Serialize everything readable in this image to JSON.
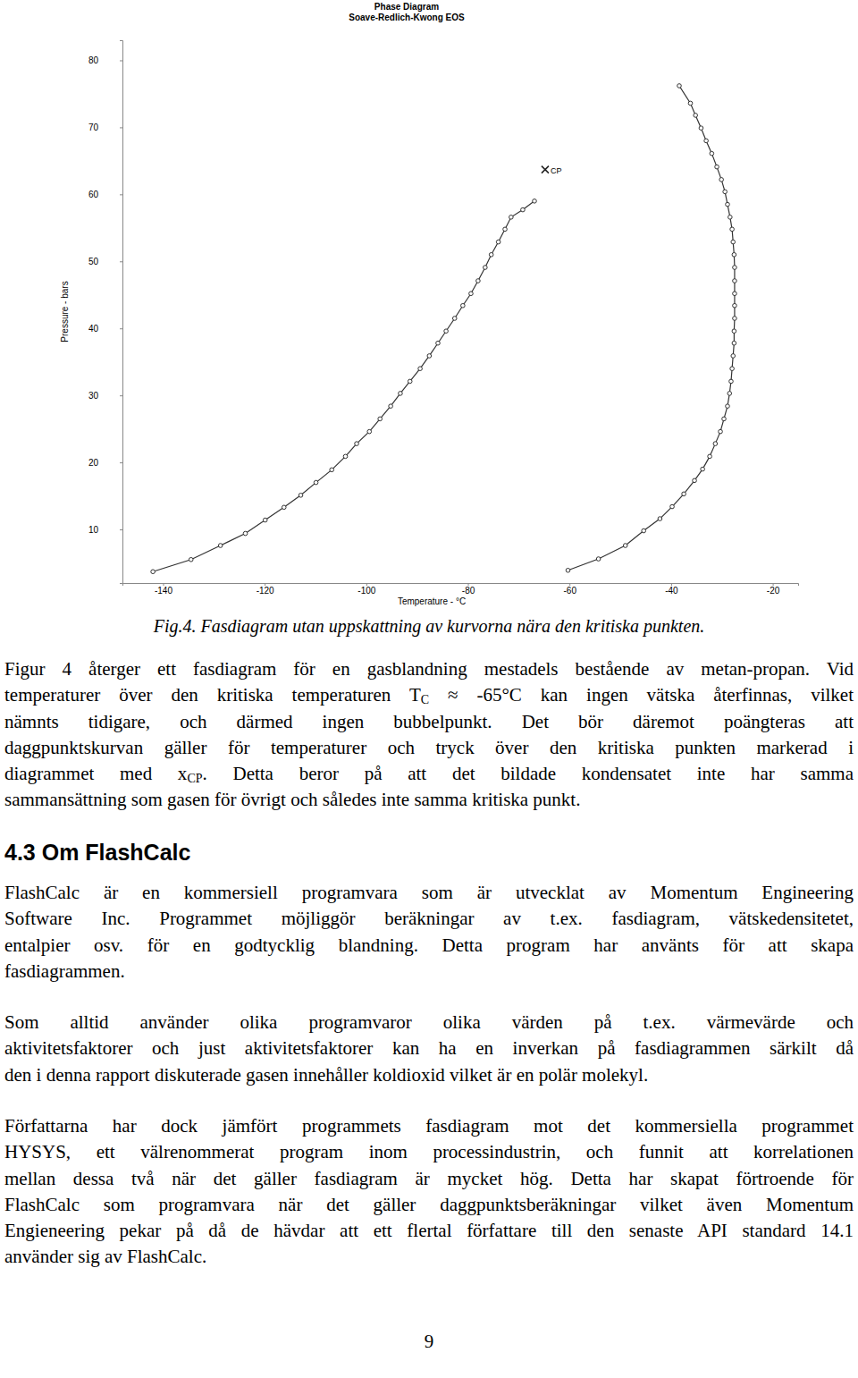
{
  "chart_data": {
    "type": "line",
    "title": "Phase Diagram",
    "subtitle": "Soave-Redlich-Kwong EOS",
    "x_label": "Temperature - °C",
    "y_label": "Pressure - bars",
    "xlim": [
      -148,
      -15
    ],
    "ylim": [
      2,
      83
    ],
    "xticks": [
      -140,
      -120,
      -100,
      -80,
      -60,
      -40,
      -20
    ],
    "yticks": [
      10,
      20,
      30,
      40,
      50,
      60,
      70,
      80
    ],
    "grid": false,
    "series": [
      {
        "color": "#333333",
        "marker": "circle",
        "line_style": "solid",
        "x": [
          -142.0,
          -134.5,
          -128.7,
          -123.8,
          -119.9,
          -116.2,
          -112.9,
          -109.9,
          -106.8,
          -104.1,
          -101.9,
          -99.4,
          -97.3,
          -95.2,
          -93.3,
          -91.4,
          -89.4,
          -87.6,
          -85.9,
          -84.3,
          -82.6,
          -81.0,
          -79.4,
          -78.0,
          -76.6,
          -75.4,
          -74.0,
          -72.7,
          -71.5,
          -69.2,
          -66.9
        ],
        "values": [
          3.7,
          5.5,
          7.6,
          9.4,
          11.4,
          13.3,
          15.1,
          17.0,
          18.9,
          20.9,
          22.8,
          24.6,
          26.5,
          28.4,
          30.3,
          32.1,
          34.0,
          35.9,
          37.8,
          39.6,
          41.5,
          43.4,
          45.2,
          47.1,
          49.1,
          51.0,
          52.9,
          54.8,
          56.6,
          57.7,
          59.0
        ]
      },
      {
        "color": "#333333",
        "marker": "circle",
        "line_style": "solid",
        "x": [
          -60.3,
          -54.3,
          -49.0,
          -45.4,
          -42.2,
          -39.8,
          -37.5,
          -35.4,
          -33.8,
          -32.4,
          -31.3,
          -30.3,
          -29.6,
          -28.9,
          -28.5,
          -28.2,
          -28.0,
          -27.8,
          -27.6,
          -27.6,
          -27.5,
          -27.5,
          -27.5,
          -27.5,
          -27.5,
          -27.6,
          -27.8,
          -28.0,
          -28.4,
          -28.9,
          -29.4,
          -30.1,
          -31.0,
          -32.0,
          -33.1,
          -34.1,
          -35.2,
          -36.2,
          -38.4
        ],
        "values": [
          3.9,
          5.6,
          7.6,
          9.8,
          11.6,
          13.4,
          15.3,
          17.3,
          19.0,
          20.9,
          22.8,
          24.6,
          26.5,
          28.4,
          30.3,
          32.1,
          34.0,
          35.9,
          37.8,
          39.6,
          41.5,
          43.4,
          45.2,
          47.1,
          49.1,
          51.0,
          52.9,
          54.8,
          56.6,
          58.5,
          60.4,
          62.2,
          64.1,
          66.1,
          68.0,
          69.9,
          71.8,
          73.6,
          76.2
        ]
      }
    ],
    "annotations": [
      {
        "x": -64.8,
        "y": 63.7,
        "text": "CP"
      }
    ]
  },
  "document": {
    "caption": "Fig.4. Fasdiagram utan uppskattning av kurvorna nära den kritiska punkten.",
    "blocks": [
      {
        "type": "paragraph",
        "lines": [
          [
            "Figur 4 återger ett fasdiagram för en gasblandning mestadels bestående av metan-propan. Vid"
          ],
          [
            "temperaturer över den kritiska temperaturen T",
            {
              "sub": "C"
            },
            " ≈ -65°C kan ingen vätska återfinnas, vilket"
          ],
          [
            "nämnts tidigare, och därmed ingen bubbelpunkt. Det bör däremot poängteras att"
          ],
          [
            "daggpunktskurvan gäller för temperaturer och tryck över den kritiska punkten markerad i"
          ],
          [
            "diagrammet med x",
            {
              "sub": "CP"
            },
            ". Detta beror på att det bildade kondensatet inte har samma"
          ],
          [
            "sammansättning som gasen för övrigt och således inte samma kritiska punkt."
          ]
        ]
      },
      {
        "type": "heading",
        "text": "4.3 Om FlashCalc"
      },
      {
        "type": "paragraph",
        "lines": [
          [
            "FlashCalc är en kommersiell programvara som är utvecklat av Momentum Engineering"
          ],
          [
            "Software Inc. Programmet möjliggör beräkningar av t.ex. fasdiagram, vätskedensitetet,"
          ],
          [
            "entalpier osv. för en godtycklig blandning. Detta program har använts för att skapa"
          ],
          [
            "fasdiagrammen."
          ]
        ]
      },
      {
        "type": "paragraph",
        "lines": [
          [
            "Som alltid använder olika programvaror olika värden på t.ex. värmevärde och"
          ],
          [
            "aktivitetsfaktorer och just aktivitetsfaktorer kan ha en inverkan på fasdiagrammen särkilt då"
          ],
          [
            "den i denna rapport diskuterade gasen innehåller koldioxid vilket är en polär molekyl."
          ]
        ]
      },
      {
        "type": "paragraph",
        "lines": [
          [
            "Författarna har dock jämfört programmets fasdiagram mot det kommersiella programmet"
          ],
          [
            "HYSYS, ett välrenommerat program inom processindustrin, och funnit att korrelationen"
          ],
          [
            "mellan dessa två när det gäller fasdiagram är mycket hög. Detta har skapat förtroende för"
          ],
          [
            "FlashCalc som programvara när det gäller daggpunktsberäkningar vilket även Momentum"
          ],
          [
            "Engieneering pekar på då de hävdar att ett flertal författare till den senaste API standard 14.1"
          ],
          [
            "använder sig av FlashCalc."
          ]
        ]
      }
    ],
    "page_number": 9
  }
}
